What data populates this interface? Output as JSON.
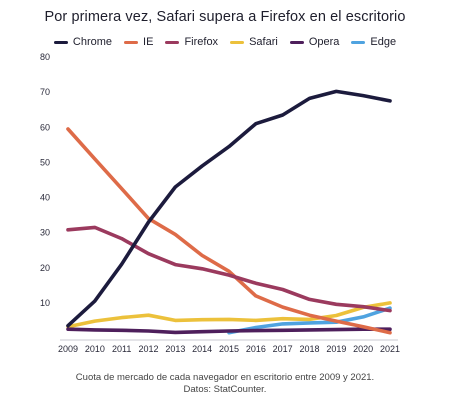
{
  "chart_data": {
    "type": "line",
    "title": "Por primera vez, Safari supera a Firefox en el escritorio",
    "xlabel": "",
    "ylabel": "",
    "x": [
      "2009",
      "2010",
      "2011",
      "2012",
      "2013",
      "2014",
      "2015",
      "2016",
      "2017",
      "2018",
      "2019",
      "2020",
      "2021"
    ],
    "yticks": [
      10,
      20,
      30,
      40,
      50,
      60,
      70,
      80
    ],
    "ylim": [
      0,
      80
    ],
    "grid": false,
    "legend_position": "top",
    "series": [
      {
        "name": "Chrome",
        "color": "#1c1b3d",
        "values": [
          3.5,
          10.5,
          21,
          33,
          43,
          49,
          54.5,
          61,
          63.5,
          68.2,
          70.2,
          69,
          67.5
        ]
      },
      {
        "name": "IE",
        "color": "#de6b48",
        "values": [
          59.5,
          51,
          42.5,
          34,
          29.5,
          23.5,
          19,
          12,
          8.8,
          6.5,
          4.8,
          3.2,
          1.5
        ]
      },
      {
        "name": "Firefox",
        "color": "#9b3a5e",
        "values": [
          30.8,
          31.5,
          28.3,
          24,
          20.9,
          19.7,
          17.9,
          15.6,
          13.8,
          11,
          9.6,
          8.9,
          7.8
        ]
      },
      {
        "name": "Safari",
        "color": "#ecc13b",
        "values": [
          3.2,
          4.8,
          5.8,
          6.5,
          5,
          5.2,
          5.3,
          5,
          5.5,
          5.3,
          6.4,
          8.7,
          10
        ]
      },
      {
        "name": "Opera",
        "color": "#4e1f5c",
        "values": [
          2.5,
          2.3,
          2.2,
          2.0,
          1.6,
          1.8,
          2,
          2.1,
          2.2,
          2.3,
          2.4,
          2.5,
          2.5
        ]
      },
      {
        "name": "Edge",
        "color": "#4fa3e0",
        "values": [
          null,
          null,
          null,
          null,
          null,
          null,
          1.5,
          3,
          4,
          4.3,
          4.5,
          6,
          8.5
        ]
      }
    ]
  },
  "caption": {
    "line1": "Cuota de mercado de cada navegador en escritorio entre 2009 y 2021.",
    "line2": "Datos: StatCounter."
  }
}
